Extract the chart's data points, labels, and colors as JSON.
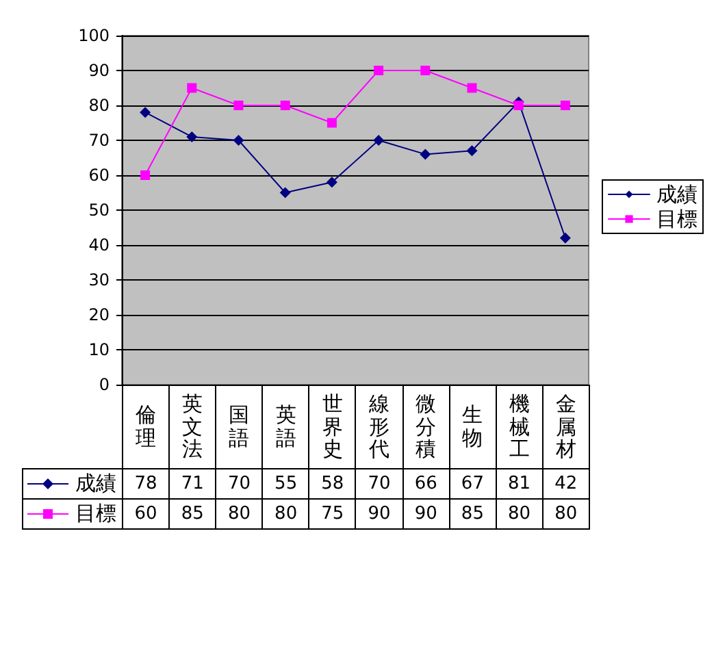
{
  "chart_data": {
    "type": "line",
    "categories": [
      "倫理",
      "英文法",
      "国語",
      "英語",
      "世界史",
      "線形代",
      "微分積",
      "生物",
      "機械工",
      "金属材"
    ],
    "series": [
      {
        "name": "成績",
        "color": "#000080",
        "marker": "diamond",
        "values": [
          78,
          71,
          70,
          55,
          58,
          70,
          66,
          67,
          81,
          42
        ]
      },
      {
        "name": "目標",
        "color": "#ff00ff",
        "marker": "square",
        "values": [
          60,
          85,
          80,
          80,
          75,
          90,
          90,
          85,
          80,
          80
        ]
      }
    ],
    "ylim": [
      0,
      100
    ],
    "yticks": [
      0,
      10,
      20,
      30,
      40,
      50,
      60,
      70,
      80,
      90,
      100
    ],
    "grid": "y",
    "legend": "right",
    "data_labels": true
  }
}
